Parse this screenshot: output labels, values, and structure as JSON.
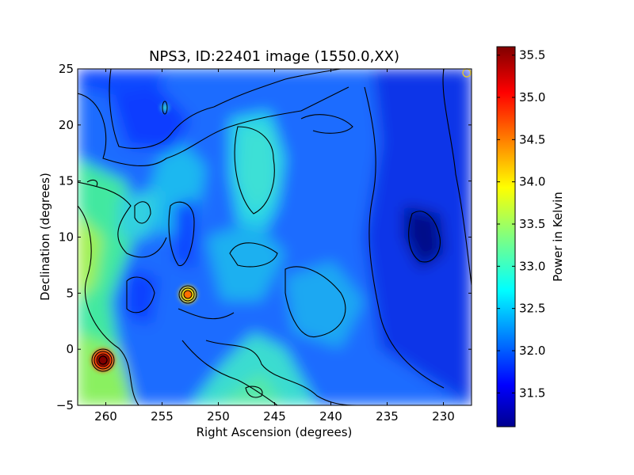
{
  "chart_data": {
    "type": "heatmap",
    "title": "NPS3, ID:22401 image (1550.0,XX)",
    "xlabel": "Right Ascension (degrees)",
    "ylabel": "Declination (degrees)",
    "xlim": [
      262.5,
      227.5
    ],
    "ylim": [
      -5,
      25
    ],
    "x_ticks": [
      260,
      255,
      250,
      245,
      240,
      235,
      230
    ],
    "y_ticks": [
      -5,
      0,
      5,
      10,
      15,
      20,
      25
    ],
    "colorbar": {
      "label": "Power in Kelvin",
      "range": [
        31.1,
        35.6
      ],
      "ticks": [
        31.5,
        32.0,
        32.5,
        33.0,
        33.5,
        34.0,
        34.5,
        35.0,
        35.5
      ],
      "colormap": "jet"
    },
    "contours": true,
    "features": [
      {
        "type": "hot-source",
        "ra": 260.0,
        "dec": -1.0,
        "power": 35.5
      },
      {
        "type": "hot-source",
        "ra": 253.0,
        "dec": 5.0,
        "power": 34.5
      },
      {
        "type": "warm-spot",
        "ra": 255.0,
        "dec": 21.5,
        "power": 32.7
      },
      {
        "type": "warm-region",
        "ra": 262.0,
        "dec": 9.0,
        "power": 33.3
      },
      {
        "type": "warm-region",
        "ra": 259.0,
        "dec": -4.0,
        "power": 33.5
      },
      {
        "type": "warm-ridge",
        "ra": 246.0,
        "dec": 18.0,
        "power": 32.6
      },
      {
        "type": "warm-ridge",
        "ra": 245.0,
        "dec": -3.0,
        "power": 33.0
      },
      {
        "type": "cold-spot",
        "ra": 231.0,
        "dec": 10.0,
        "power": 31.2
      },
      {
        "type": "cold-region",
        "ra": 250.0,
        "dec": 22.0,
        "power": 31.5
      },
      {
        "type": "marker",
        "ra": 228.0,
        "dec": 24.5
      }
    ]
  }
}
